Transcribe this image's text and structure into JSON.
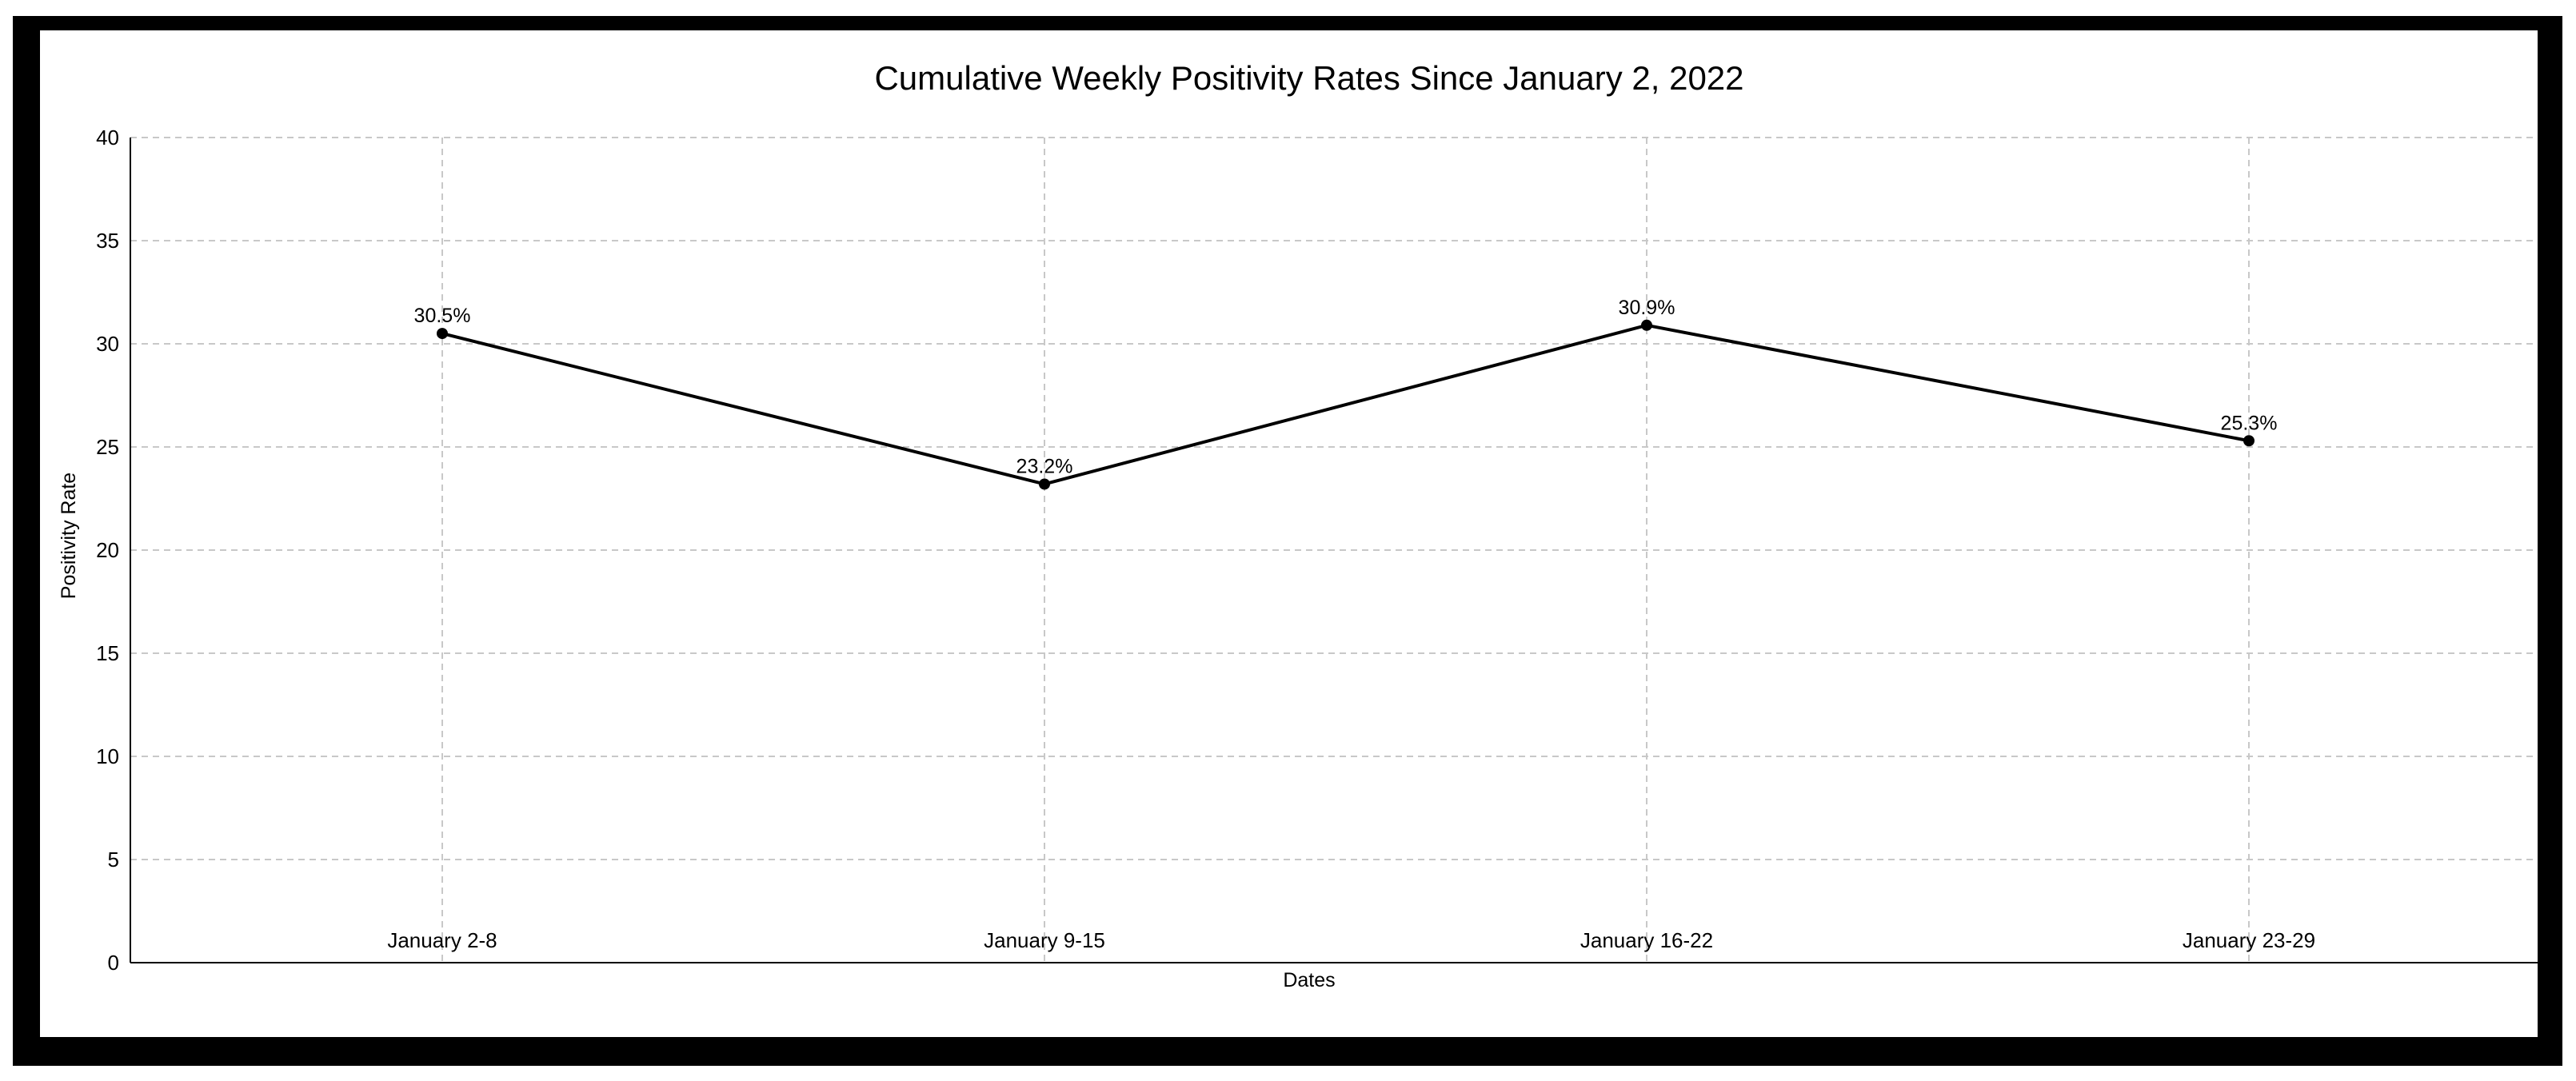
{
  "chart_data": {
    "type": "line",
    "title": "Cumulative Weekly Positivity Rates Since January 2, 2022",
    "xlabel": "Dates",
    "ylabel": "Positivity Rate",
    "categories": [
      "January 2-8",
      "January 9-15",
      "January 16-22",
      "January 23-29"
    ],
    "values": [
      30.5,
      23.2,
      30.9,
      25.3
    ],
    "data_labels": [
      "30.5%",
      "23.2%",
      "30.9%",
      "25.3%"
    ],
    "ylim": [
      0,
      40
    ],
    "yticks": [
      0,
      5,
      10,
      15,
      20,
      25,
      30,
      35,
      40
    ],
    "grid": true,
    "grid_style": "dashed",
    "colors": {
      "line": "#000000",
      "grid": "#c8c8c8",
      "frame": "#000000",
      "background": "#ffffff"
    }
  }
}
